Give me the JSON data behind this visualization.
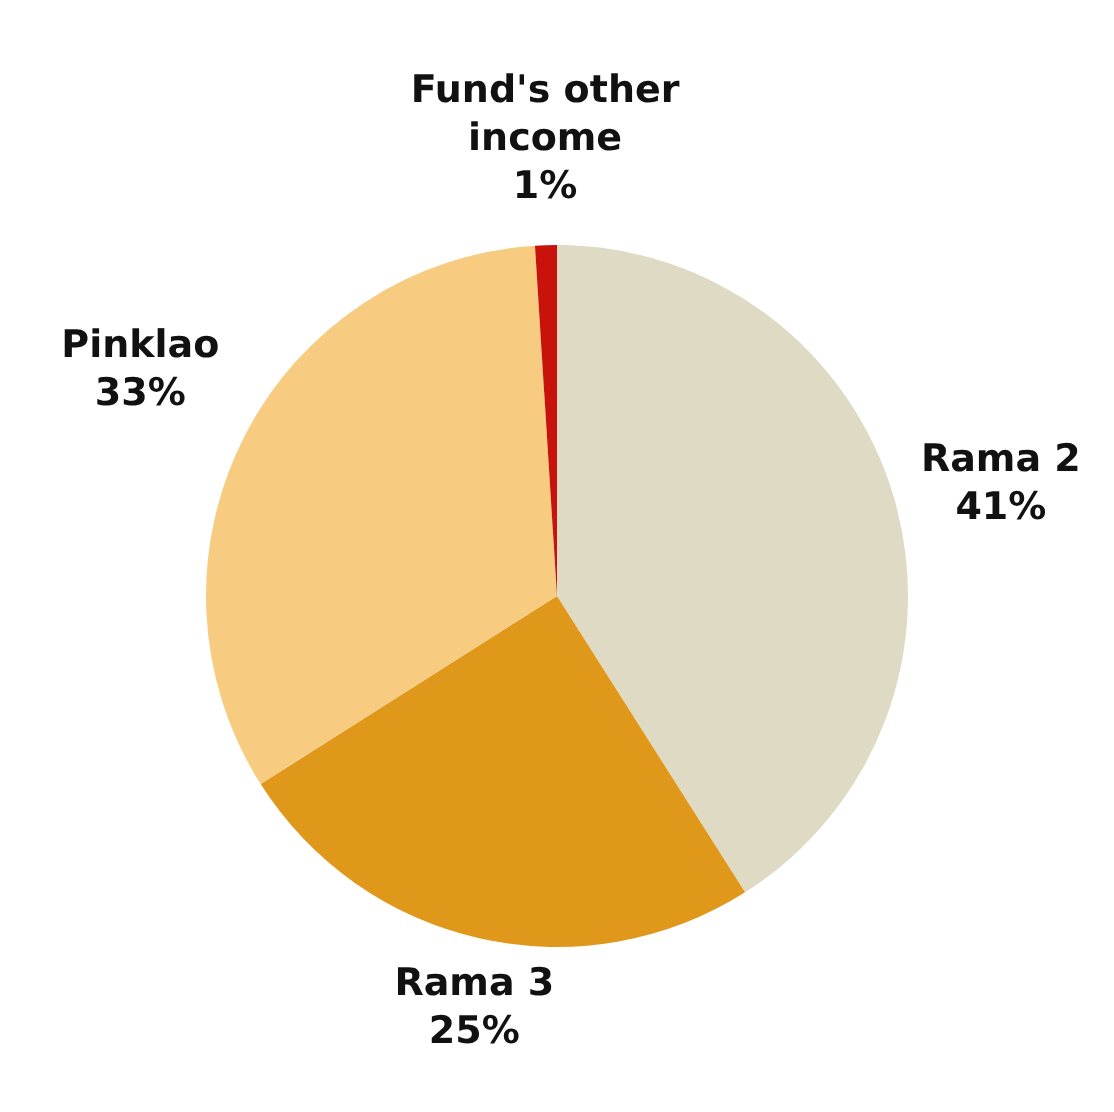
{
  "chart_data": {
    "type": "pie",
    "categories": [
      "Rama 2",
      "Rama 3",
      "Pinklao",
      "Fund's other income"
    ],
    "values": [
      41,
      25,
      33,
      1
    ],
    "colors": [
      "#dedac4",
      "#e0981a",
      "#f7cb80",
      "#c8120c"
    ],
    "value_labels": [
      "41%",
      "25%",
      "33%",
      "1%"
    ],
    "legend": false
  }
}
